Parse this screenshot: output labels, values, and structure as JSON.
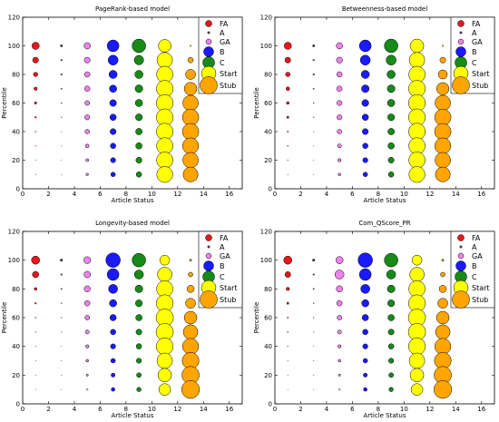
{
  "legend_entries": [
    {
      "label": "FA",
      "color": "#e8171b"
    },
    {
      "label": "A",
      "color": "#555555"
    },
    {
      "label": "GA",
      "color": "#ee82ee"
    },
    {
      "label": "B",
      "color": "#1a1aff"
    },
    {
      "label": "C",
      "color": "#178a17"
    },
    {
      "label": "Start",
      "color": "#ffff00"
    },
    {
      "label": "Stub",
      "color": "#ffa500"
    }
  ],
  "chart_data": [
    {
      "type": "scatter",
      "title": "PageRank-based model",
      "xlabel": "Article Status",
      "ylabel": "Percentile",
      "xlim": [
        0,
        17
      ],
      "ylim": [
        0,
        120
      ],
      "xticks": [
        0,
        2,
        4,
        6,
        8,
        10,
        12,
        14,
        16
      ],
      "yticks": [
        0,
        20,
        40,
        60,
        80,
        100,
        120
      ],
      "grid": false,
      "legend_position": "top-right",
      "size_unit": "relative marker size (0-10)",
      "series": [
        {
          "name": "FA",
          "color": "#e8171b",
          "x": 1,
          "percentiles": [
            100,
            90,
            80,
            70,
            60,
            50,
            40,
            30,
            20,
            10
          ],
          "sizes": [
            4.0,
            3.2,
            2.4,
            1.8,
            1.3,
            1.0,
            0.6,
            0.5,
            0.4,
            0.4
          ]
        },
        {
          "name": "A",
          "color": "#555555",
          "x": 3,
          "percentiles": [
            100,
            90,
            80,
            70,
            60,
            50,
            40,
            30,
            20,
            10
          ],
          "sizes": [
            1.2,
            1.0,
            1.0,
            0.8,
            0.6,
            0.5,
            0.4,
            0.3,
            0.3,
            0.3
          ]
        },
        {
          "name": "GA",
          "color": "#ee82ee",
          "x": 5,
          "percentiles": [
            100,
            90,
            80,
            70,
            60,
            50,
            40,
            30,
            20,
            10
          ],
          "sizes": [
            3.5,
            3.2,
            3.0,
            3.0,
            2.6,
            2.8,
            2.5,
            2.0,
            1.6,
            1.4
          ]
        },
        {
          "name": "B",
          "color": "#1a1aff",
          "x": 7,
          "percentiles": [
            100,
            90,
            80,
            70,
            60,
            50,
            40,
            30,
            20,
            10
          ],
          "sizes": [
            6.5,
            5.5,
            4.5,
            4.0,
            3.7,
            3.5,
            3.3,
            3.0,
            2.8,
            2.5
          ]
        },
        {
          "name": "C",
          "color": "#178a17",
          "x": 9,
          "percentiles": [
            100,
            90,
            80,
            70,
            60,
            50,
            40,
            30,
            20,
            10
          ],
          "sizes": [
            7.5,
            5.2,
            4.5,
            4.2,
            4.0,
            3.8,
            3.6,
            3.5,
            3.3,
            3.0
          ]
        },
        {
          "name": "Start",
          "color": "#ffff00",
          "x": 11,
          "percentiles": [
            100,
            90,
            80,
            70,
            60,
            50,
            40,
            30,
            20,
            10
          ],
          "sizes": [
            7.0,
            8.5,
            9.0,
            9.2,
            9.3,
            9.3,
            9.2,
            9.0,
            9.0,
            8.8
          ]
        },
        {
          "name": "Stub",
          "color": "#ffa500",
          "x": 13,
          "percentiles": [
            100,
            90,
            80,
            70,
            60,
            50,
            40,
            30,
            20,
            10
          ],
          "sizes": [
            1.0,
            3.0,
            5.5,
            7.0,
            8.5,
            9.0,
            9.0,
            8.8,
            8.5,
            8.2
          ]
        }
      ]
    },
    {
      "type": "scatter",
      "title": "Betweenness-based model",
      "xlabel": "Article Status",
      "ylabel": "Percentile",
      "xlim": [
        0,
        17
      ],
      "ylim": [
        0,
        120
      ],
      "xticks": [
        0,
        2,
        4,
        6,
        8,
        10,
        12,
        14,
        16
      ],
      "yticks": [
        0,
        20,
        40,
        60,
        80,
        100,
        120
      ],
      "grid": false,
      "legend_position": "top-right",
      "size_unit": "relative marker size (0-10)",
      "series": [
        {
          "name": "FA",
          "color": "#e8171b",
          "x": 1,
          "percentiles": [
            100,
            90,
            80,
            70,
            60,
            50,
            40,
            30,
            20,
            10
          ],
          "sizes": [
            4.0,
            3.2,
            2.5,
            2.0,
            1.5,
            1.2,
            0.8,
            0.6,
            0.5,
            0.4
          ]
        },
        {
          "name": "A",
          "color": "#555555",
          "x": 3,
          "percentiles": [
            100,
            90,
            80,
            70,
            60,
            50,
            40,
            30,
            20,
            10
          ],
          "sizes": [
            1.2,
            1.0,
            1.0,
            0.8,
            0.6,
            0.5,
            0.4,
            0.3,
            0.3,
            0.3
          ]
        },
        {
          "name": "GA",
          "color": "#ee82ee",
          "x": 5,
          "percentiles": [
            100,
            90,
            80,
            70,
            60,
            50,
            40,
            30,
            20,
            10
          ],
          "sizes": [
            3.5,
            3.3,
            3.0,
            3.0,
            2.8,
            2.8,
            2.5,
            2.2,
            1.8,
            1.5
          ]
        },
        {
          "name": "B",
          "color": "#1a1aff",
          "x": 7,
          "percentiles": [
            100,
            90,
            80,
            70,
            60,
            50,
            40,
            30,
            20,
            10
          ],
          "sizes": [
            6.5,
            5.5,
            4.5,
            4.2,
            3.8,
            3.5,
            3.3,
            3.0,
            2.8,
            2.5
          ]
        },
        {
          "name": "C",
          "color": "#178a17",
          "x": 9,
          "percentiles": [
            100,
            90,
            80,
            70,
            60,
            50,
            40,
            30,
            20,
            10
          ],
          "sizes": [
            7.5,
            5.5,
            4.5,
            4.2,
            4.0,
            3.8,
            3.6,
            3.5,
            3.2,
            3.0
          ]
        },
        {
          "name": "Start",
          "color": "#ffff00",
          "x": 11,
          "percentiles": [
            100,
            90,
            80,
            70,
            60,
            50,
            40,
            30,
            20,
            10
          ],
          "sizes": [
            7.5,
            8.5,
            9.0,
            9.2,
            9.3,
            9.3,
            9.2,
            9.0,
            9.0,
            8.8
          ]
        },
        {
          "name": "Stub",
          "color": "#ffa500",
          "x": 13,
          "percentiles": [
            100,
            90,
            80,
            70,
            60,
            50,
            40,
            30,
            20,
            10
          ],
          "sizes": [
            1.0,
            3.2,
            5.0,
            6.8,
            8.5,
            9.0,
            9.0,
            8.8,
            8.5,
            8.2
          ]
        }
      ]
    },
    {
      "type": "scatter",
      "title": "Longevity-based model",
      "xlabel": "Article Status",
      "ylabel": "Percentile",
      "xlim": [
        0,
        17
      ],
      "ylim": [
        0,
        120
      ],
      "xticks": [
        0,
        2,
        4,
        6,
        8,
        10,
        12,
        14,
        16
      ],
      "yticks": [
        0,
        20,
        40,
        60,
        80,
        100,
        120
      ],
      "grid": false,
      "legend_position": "top-right",
      "size_unit": "relative marker size (0-10)",
      "series": [
        {
          "name": "FA",
          "color": "#e8171b",
          "x": 1,
          "percentiles": [
            100,
            90,
            80,
            70,
            60,
            50,
            40,
            30,
            20,
            10
          ],
          "sizes": [
            4.5,
            3.5,
            1.5,
            1.0,
            0.6,
            0.5,
            0.4,
            0.3,
            0.3,
            0.3
          ]
        },
        {
          "name": "A",
          "color": "#555555",
          "x": 3,
          "percentiles": [
            100,
            90,
            80,
            70,
            60,
            50,
            40,
            30,
            20,
            10
          ],
          "sizes": [
            1.3,
            1.0,
            0.8,
            0.6,
            0.5,
            0.4,
            0.3,
            0.3,
            0.3,
            0.3
          ]
        },
        {
          "name": "GA",
          "color": "#ee82ee",
          "x": 5,
          "percentiles": [
            100,
            90,
            80,
            70,
            60,
            50,
            40,
            30,
            20,
            10
          ],
          "sizes": [
            3.8,
            3.6,
            3.4,
            3.0,
            2.6,
            2.2,
            1.8,
            1.5,
            1.2,
            1.0
          ]
        },
        {
          "name": "B",
          "color": "#1a1aff",
          "x": 7,
          "percentiles": [
            100,
            90,
            80,
            70,
            60,
            50,
            40,
            30,
            20,
            10
          ],
          "sizes": [
            8.0,
            6.5,
            5.0,
            4.0,
            3.5,
            3.0,
            2.8,
            2.5,
            2.2,
            2.0
          ]
        },
        {
          "name": "C",
          "color": "#178a17",
          "x": 9,
          "percentiles": [
            100,
            90,
            80,
            70,
            60,
            50,
            40,
            30,
            20,
            10
          ],
          "sizes": [
            7.5,
            5.0,
            4.2,
            3.8,
            3.5,
            3.2,
            3.0,
            2.8,
            2.6,
            2.4
          ]
        },
        {
          "name": "Start",
          "color": "#ffff00",
          "x": 11,
          "percentiles": [
            100,
            90,
            80,
            70,
            60,
            50,
            40,
            30,
            20,
            10
          ],
          "sizes": [
            5.5,
            8.0,
            9.0,
            9.3,
            9.5,
            9.5,
            9.3,
            8.5,
            7.5,
            6.5
          ]
        },
        {
          "name": "Stub",
          "color": "#ffa500",
          "x": 13,
          "percentiles": [
            100,
            90,
            80,
            70,
            60,
            50,
            40,
            30,
            20,
            10
          ],
          "sizes": [
            1.2,
            2.5,
            4.0,
            5.5,
            7.0,
            8.0,
            8.8,
            9.2,
            9.5,
            9.8
          ]
        }
      ]
    },
    {
      "type": "scatter",
      "title": "Com_QScore_PR",
      "xlabel": "Article Status",
      "ylabel": "Percentile",
      "xlim": [
        0,
        17
      ],
      "ylim": [
        0,
        120
      ],
      "xticks": [
        0,
        2,
        4,
        6,
        8,
        10,
        12,
        14,
        16
      ],
      "yticks": [
        0,
        20,
        40,
        60,
        80,
        100,
        120
      ],
      "grid": false,
      "legend_position": "top-right",
      "size_unit": "relative marker size (0-10)",
      "series": [
        {
          "name": "FA",
          "color": "#e8171b",
          "x": 1,
          "percentiles": [
            100,
            90,
            80,
            70,
            60,
            50,
            40,
            30,
            20,
            10
          ],
          "sizes": [
            4.5,
            3.2,
            1.8,
            1.2,
            0.8,
            0.6,
            0.5,
            0.4,
            0.3,
            0.3
          ]
        },
        {
          "name": "A",
          "color": "#555555",
          "x": 3,
          "percentiles": [
            100,
            90,
            80,
            70,
            60,
            50,
            40,
            30,
            20,
            10
          ],
          "sizes": [
            1.3,
            1.0,
            0.8,
            0.6,
            0.5,
            0.4,
            0.3,
            0.3,
            0.3,
            0.3
          ]
        },
        {
          "name": "GA",
          "color": "#ee82ee",
          "x": 5,
          "percentiles": [
            100,
            90,
            80,
            70,
            60,
            50,
            40,
            30,
            20,
            10
          ],
          "sizes": [
            4.0,
            5.0,
            3.5,
            3.0,
            2.6,
            2.2,
            1.8,
            1.5,
            1.2,
            1.0
          ]
        },
        {
          "name": "B",
          "color": "#1a1aff",
          "x": 7,
          "percentiles": [
            100,
            90,
            80,
            70,
            60,
            50,
            40,
            30,
            20,
            10
          ],
          "sizes": [
            8.0,
            6.5,
            5.0,
            4.0,
            3.5,
            3.0,
            2.8,
            2.5,
            2.2,
            2.0
          ]
        },
        {
          "name": "C",
          "color": "#178a17",
          "x": 9,
          "percentiles": [
            100,
            90,
            80,
            70,
            60,
            50,
            40,
            30,
            20,
            10
          ],
          "sizes": [
            7.5,
            5.0,
            4.2,
            3.8,
            3.5,
            3.2,
            3.0,
            2.8,
            2.6,
            2.4
          ]
        },
        {
          "name": "Start",
          "color": "#ffff00",
          "x": 11,
          "percentiles": [
            100,
            90,
            80,
            70,
            60,
            50,
            40,
            30,
            20,
            10
          ],
          "sizes": [
            5.5,
            8.0,
            9.0,
            9.3,
            9.5,
            9.5,
            9.3,
            8.5,
            7.5,
            6.5
          ]
        },
        {
          "name": "Stub",
          "color": "#ffa500",
          "x": 13,
          "percentiles": [
            100,
            90,
            80,
            70,
            60,
            50,
            40,
            30,
            20,
            10
          ],
          "sizes": [
            1.2,
            2.5,
            4.0,
            5.5,
            7.0,
            8.0,
            8.8,
            9.2,
            9.5,
            9.8
          ]
        }
      ]
    }
  ]
}
